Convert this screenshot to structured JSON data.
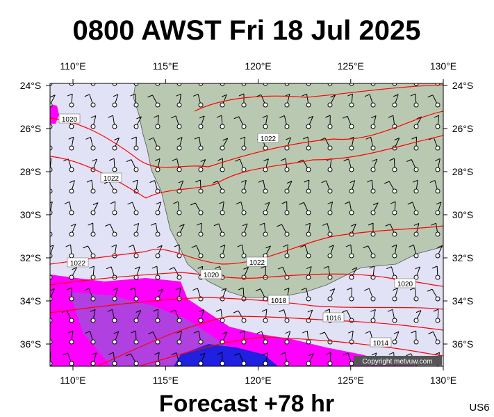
{
  "title": "0800 AWST Fri 18 Jul 2025",
  "map": {
    "x_labels": [
      "110°E",
      "115°E",
      "120°E",
      "125°E",
      "130°E"
    ],
    "y_labels": [
      "24°S",
      "26°S",
      "28°S",
      "30°S",
      "32°S",
      "34°S",
      "36°S"
    ],
    "isobar_labels": [
      "1020",
      "1022",
      "1022",
      "1022",
      "1022",
      "1020",
      "1020",
      "1018",
      "1016",
      "1014"
    ],
    "copyright": "Copyright metvuw.com"
  },
  "footer": "Forecast +78 hr",
  "code": "US6"
}
